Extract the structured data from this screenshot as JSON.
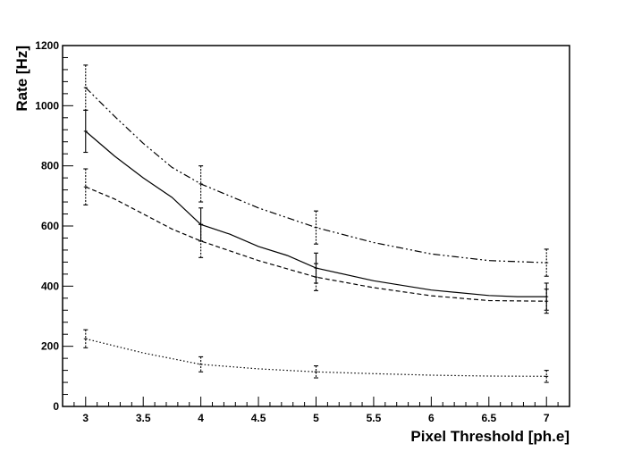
{
  "chart_data": {
    "type": "line",
    "title": "",
    "xlabel": "Pixel Threshold [ph.e]",
    "ylabel": "Rate [Hz]",
    "xlim": [
      2.8,
      7.2
    ],
    "ylim": [
      0,
      1200
    ],
    "x_ticks": [
      3,
      3.5,
      4,
      4.5,
      5,
      5.5,
      6,
      6.5,
      7
    ],
    "y_ticks": [
      0,
      200,
      400,
      600,
      800,
      1000,
      1200
    ],
    "grid": false,
    "legend": "none",
    "x": [
      3,
      4,
      5,
      7
    ],
    "series": [
      {
        "style": "solid",
        "values": [
          915,
          605,
          460,
          365
        ],
        "errors": [
          70,
          55,
          50,
          45
        ],
        "curve": [
          [
            3,
            915
          ],
          [
            3.25,
            833
          ],
          [
            3.5,
            760
          ],
          [
            3.75,
            695
          ],
          [
            4,
            605
          ],
          [
            4.25,
            573
          ],
          [
            4.5,
            532
          ],
          [
            4.75,
            502
          ],
          [
            5,
            460
          ],
          [
            5.5,
            418
          ],
          [
            6,
            387
          ],
          [
            6.5,
            369
          ],
          [
            6.75,
            365
          ],
          [
            7,
            365
          ]
        ]
      },
      {
        "style": "dashed",
        "values": [
          730,
          550,
          430,
          350
        ],
        "errors": [
          60,
          55,
          45,
          40
        ],
        "curve": [
          [
            3,
            730
          ],
          [
            3.25,
            690
          ],
          [
            3.5,
            640
          ],
          [
            3.75,
            590
          ],
          [
            4,
            550
          ],
          [
            4.5,
            485
          ],
          [
            5,
            430
          ],
          [
            5.5,
            395
          ],
          [
            6,
            368
          ],
          [
            6.5,
            352
          ],
          [
            7,
            350
          ]
        ]
      },
      {
        "style": "dashdot",
        "values": [
          1060,
          740,
          595,
          478
        ],
        "errors": [
          75,
          60,
          55,
          45
        ],
        "curve": [
          [
            3,
            1060
          ],
          [
            3.25,
            965
          ],
          [
            3.5,
            875
          ],
          [
            3.75,
            795
          ],
          [
            4,
            740
          ],
          [
            4.5,
            660
          ],
          [
            5,
            595
          ],
          [
            5.5,
            545
          ],
          [
            6,
            507
          ],
          [
            6.5,
            485
          ],
          [
            7,
            478
          ]
        ]
      },
      {
        "style": "dotted",
        "values": [
          225,
          140,
          115,
          100
        ],
        "errors": [
          30,
          25,
          20,
          20
        ],
        "curve": [
          [
            3,
            225
          ],
          [
            3.5,
            178
          ],
          [
            4,
            140
          ],
          [
            4.5,
            125
          ],
          [
            5,
            115
          ],
          [
            5.5,
            109
          ],
          [
            6,
            104
          ],
          [
            6.5,
            101
          ],
          [
            7,
            100
          ]
        ]
      }
    ]
  }
}
